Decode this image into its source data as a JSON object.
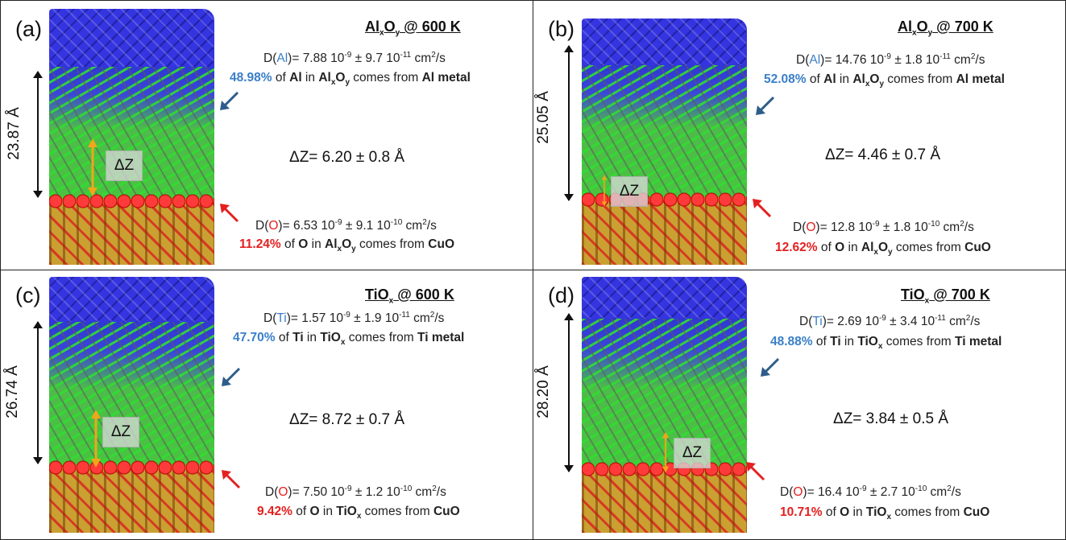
{
  "panels": {
    "a": {
      "label": "(a)",
      "title_main": "Al",
      "title_sub1": "x",
      "title_mid": "O",
      "title_sub2": "y",
      "title_tail": " @ 600 K",
      "height_label": "23.87 Å",
      "dz_box_label": "ΔZ",
      "dz_line": "ΔZ= 6.20 ± 0.8 Å",
      "metal_diff": {
        "prefix": "D(",
        "element": "Al",
        "close": ")= ",
        "val1": "7.88 10",
        "exp1": "-9",
        "mid": " ± 9.7 10",
        "exp2": "-11",
        "unit": " cm",
        "unit_exp": "2",
        "tail": "/s"
      },
      "metal_frac": {
        "pct": "48.98%",
        "of": " of ",
        "el": "Al",
        "in": " in ",
        "ox_main": "Al",
        "ox_s1": "x",
        "ox_mid": "O",
        "ox_s2": "y",
        "from": " comes from ",
        "src": "Al metal"
      },
      "oxy_diff": {
        "prefix": "D(",
        "element": "O",
        "close": ")= ",
        "val1": "6.53 10",
        "exp1": "-9",
        "mid": "  ± 9.1 10",
        "exp2": "-10",
        "unit": " cm",
        "unit_exp": "2",
        "tail": "/s"
      },
      "oxy_frac": {
        "pct": "11.24%",
        "of": " of ",
        "el": "O",
        "in": " in ",
        "ox_main": "Al",
        "ox_s1": "x",
        "ox_mid": "O",
        "ox_s2": "y",
        "from": " comes from ",
        "src": "CuO"
      }
    },
    "b": {
      "label": "(b)",
      "title_main": "Al",
      "title_sub1": "x",
      "title_mid": "O",
      "title_sub2": "y",
      "title_tail": " @ 700 K",
      "height_label": "25.05 Å",
      "dz_box_label": "ΔZ",
      "dz_line": "ΔZ= 4.46 ±  0.7 Å",
      "metal_diff": {
        "prefix": "D(",
        "element": "Al",
        "close": ")= ",
        "val1": "14.76 10",
        "exp1": "-9",
        "mid": " ± 1.8 10",
        "exp2": "-11",
        "unit": " cm",
        "unit_exp": "2",
        "tail": "/s"
      },
      "metal_frac": {
        "pct": "52.08%",
        "of": " of ",
        "el": "Al",
        "in": " in ",
        "ox_main": "Al",
        "ox_s1": "x",
        "ox_mid": "O",
        "ox_s2": "y",
        "from": " comes from ",
        "src": "Al metal"
      },
      "oxy_diff": {
        "prefix": "D(",
        "element": "O",
        "close": ")= ",
        "val1": "12.8 10",
        "exp1": "-9",
        "mid": "  ± 1.8 10",
        "exp2": "-10",
        "unit": " cm",
        "unit_exp": "2",
        "tail": "/s"
      },
      "oxy_frac": {
        "pct": "12.62%",
        "of": " of ",
        "el": "O",
        "in": " in ",
        "ox_main": "Al",
        "ox_s1": "x",
        "ox_mid": "O",
        "ox_s2": "y",
        "from": " comes from ",
        "src": "CuO"
      }
    },
    "c": {
      "label": "(c)",
      "title_main": "TiO",
      "title_sub1": "x",
      "title_tail": " @ 600 K",
      "height_label": "26.74 Å",
      "dz_box_label": "ΔZ",
      "dz_line": "ΔZ= 8.72 ± 0.7 Å",
      "metal_diff": {
        "prefix": "D(",
        "element": "Ti",
        "close": ")= ",
        "val1": "1.57 10",
        "exp1": "-9",
        "mid": " ±  1.9 10",
        "exp2": "-11",
        "unit": " cm",
        "unit_exp": "2",
        "tail": "/s"
      },
      "metal_frac": {
        "pct": "47.70%",
        "of": " of ",
        "el": "Ti",
        "in": " in ",
        "ox_main": "TiO",
        "ox_s1": "x",
        "from": " comes from ",
        "src": "Ti metal"
      },
      "oxy_diff": {
        "prefix": "D(",
        "element": "O",
        "close": ")= ",
        "val1": "7.50 10",
        "exp1": "-9",
        "mid": " ± 1.2 10",
        "exp2": "-10",
        "unit": " cm",
        "unit_exp": "2",
        "tail": "/s"
      },
      "oxy_frac": {
        "pct": "9.42%",
        "of": " of ",
        "el": "O",
        "in": " in ",
        "ox_main": "TiO",
        "ox_s1": "x",
        "from": " comes from ",
        "src": "CuO"
      }
    },
    "d": {
      "label": "(d)",
      "title_main": "TiO",
      "title_sub1": "x",
      "title_tail": " @ 700 K",
      "height_label": "28.20 Å",
      "dz_box_label": "ΔZ",
      "dz_line": "ΔZ= 3.84 ± 0.5 Å",
      "metal_diff": {
        "prefix": "D(",
        "element": "Ti",
        "close": ")= ",
        "val1": "2.69 10",
        "exp1": "-9",
        "mid": " ± 3.4 10",
        "exp2": "-11",
        "unit": " cm",
        "unit_exp": "2",
        "tail": "/s"
      },
      "metal_frac": {
        "pct": "48.88%",
        "of": " of ",
        "el": "Ti",
        "in": " in ",
        "ox_main": "TiO",
        "ox_s1": "x",
        "from": " comes from ",
        "src": "Ti metal"
      },
      "oxy_diff": {
        "prefix": "D(",
        "element": "O",
        "close": ")= ",
        "val1": "16.4 10",
        "exp1": "-9",
        "mid": " ± 2.7 10",
        "exp2": "-10",
        "unit": " cm",
        "unit_exp": "2",
        "tail": "/s"
      },
      "oxy_frac": {
        "pct": "10.71%",
        "of": " of ",
        "el": "O",
        "in": " in ",
        "ox_main": "TiO",
        "ox_s1": "x",
        "from": " comes from ",
        "src": "CuO"
      }
    }
  },
  "colors": {
    "metal_atoms": "#3434e0",
    "bonds": "#49c43f",
    "oxygen": "#e42020",
    "cuo": "#c9a031",
    "accent_blue": "#3a7fc8",
    "accent_red": "#e42020",
    "dz_arrow": "#f2a51a"
  }
}
